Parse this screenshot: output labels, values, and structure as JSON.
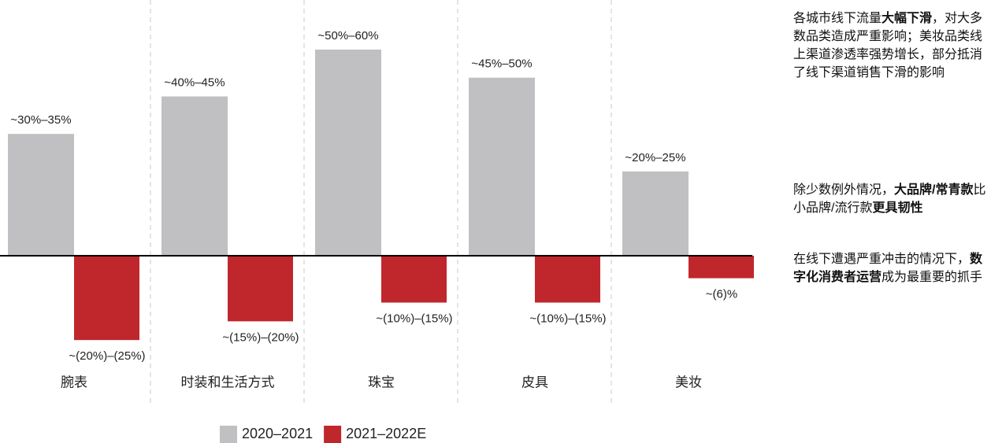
{
  "chart_data": {
    "type": "bar",
    "categories": [
      "腕表",
      "时装和生活方式",
      "珠宝",
      "皮具",
      "美妆"
    ],
    "series": [
      {
        "name": "2020–2021",
        "color": "#c0c0c2",
        "values": [
          32.5,
          42.5,
          55,
          47.5,
          22.5
        ],
        "value_labels": [
          "~30%–35%",
          "~40%–45%",
          "~50%–60%",
          "~45%–50%",
          "~20%–25%"
        ]
      },
      {
        "name": "2021–2022E",
        "color": "#c0272d",
        "values": [
          -22.5,
          -17.5,
          -12.5,
          -12.5,
          -6
        ],
        "value_labels": [
          "~(20%)–(25%)",
          "~(15%)–(20%)",
          "~(10%)–(15%)",
          "~(10%)–(15%)",
          "~(6)%"
        ]
      }
    ]
  },
  "notes": [
    [
      {
        "text": "各城市线下流量",
        "bold": false
      },
      {
        "text": "大幅下滑",
        "bold": true
      },
      {
        "text": "，对大多数品类造成严重影响；美妆品类线上渠道渗透率强势增长，部分抵消了线下渠道销售下滑的影响",
        "bold": false
      }
    ],
    [
      {
        "text": "除少数例外情况，",
        "bold": false
      },
      {
        "text": "大品牌/常青款",
        "bold": true
      },
      {
        "text": "比小品牌/流行款",
        "bold": false
      },
      {
        "text": "更具韧性",
        "bold": true
      }
    ],
    [
      {
        "text": "在线下遭遇严重冲击的情况下，",
        "bold": false
      },
      {
        "text": "数字化消费者运营",
        "bold": true
      },
      {
        "text": "成为最重要的抓手",
        "bold": false
      }
    ]
  ]
}
